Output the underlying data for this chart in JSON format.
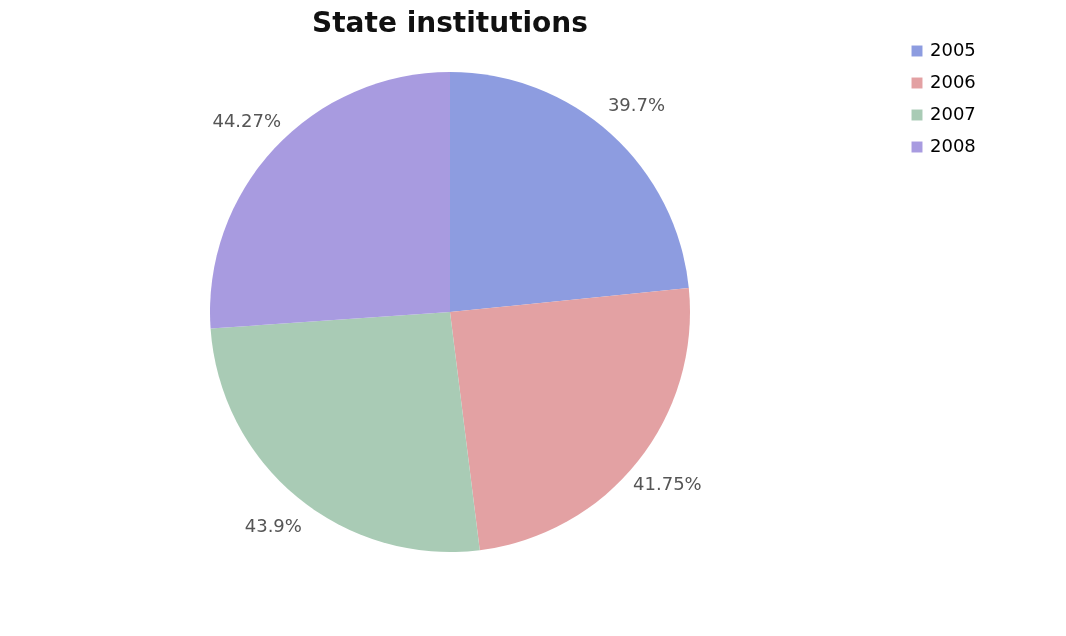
{
  "chart_data": {
    "type": "pie",
    "title": "State institutions",
    "categories": [
      "2005",
      "2006",
      "2007",
      "2008"
    ],
    "values": [
      39.7,
      41.75,
      43.9,
      44.27
    ],
    "value_labels": [
      "39.7%",
      "41.75%",
      "43.9%",
      "44.27%"
    ],
    "colors": [
      "#8d9ce0",
      "#e3a1a3",
      "#a9cbb5",
      "#a89be0"
    ],
    "legend": "right"
  }
}
